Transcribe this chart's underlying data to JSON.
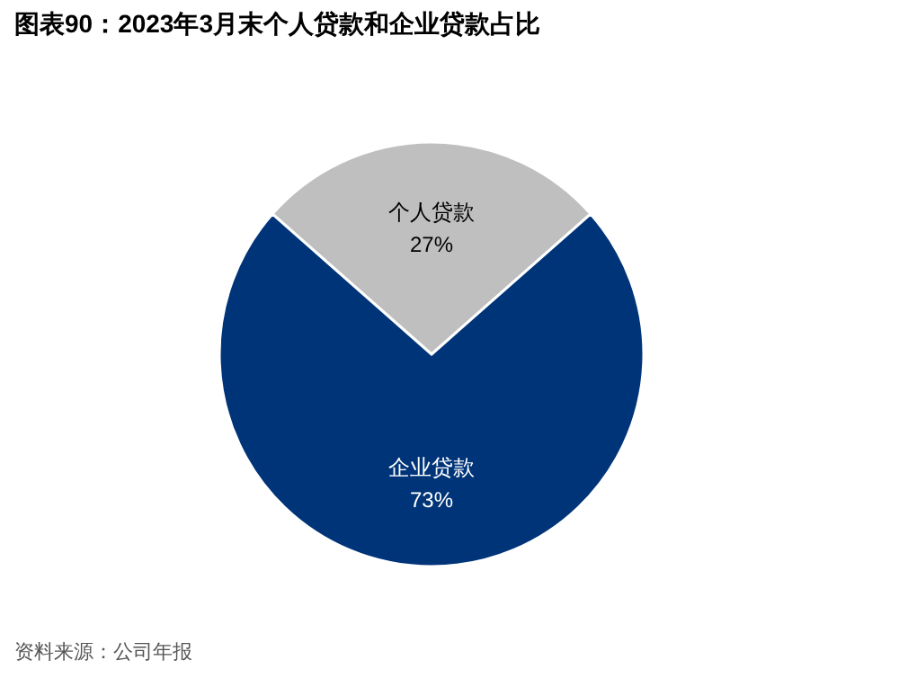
{
  "chart_data": {
    "type": "pie",
    "title": "图表90：2023年3月末个人贷款和企业贷款占比",
    "categories": [
      "个人贷款",
      "企业贷款"
    ],
    "values": [
      27,
      73
    ],
    "colors": [
      "#bfbfbf",
      "#003479"
    ],
    "value_labels": [
      "27%",
      "73%"
    ],
    "annotations": [
      "资料来源：公司年报"
    ]
  }
}
